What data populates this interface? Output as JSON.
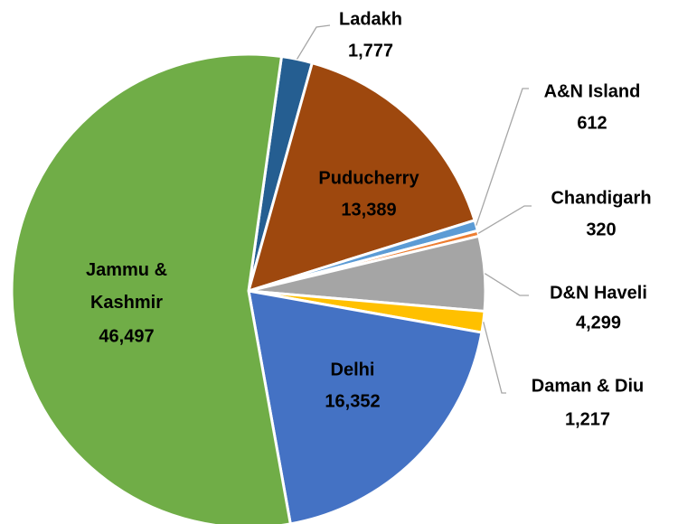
{
  "chart_data": {
    "type": "pie",
    "categories": [
      "Ladakh",
      "Puducherry",
      "A&N Island",
      "Chandigarh",
      "D&N Haveli",
      "Daman & Diu",
      "Delhi",
      "Jammu & Kashmir"
    ],
    "values": [
      1777,
      13389,
      612,
      320,
      4299,
      1217,
      16352,
      46497
    ],
    "value_labels": [
      "1,777",
      "13,389",
      "612",
      "320",
      "4,299",
      "1,217",
      "16,352",
      "46,497"
    ],
    "colors": [
      "#255e91",
      "#9e480e",
      "#5b9bd5",
      "#ed7d31",
      "#a5a5a5",
      "#ffc000",
      "#4472c4",
      "#70ad47"
    ]
  }
}
